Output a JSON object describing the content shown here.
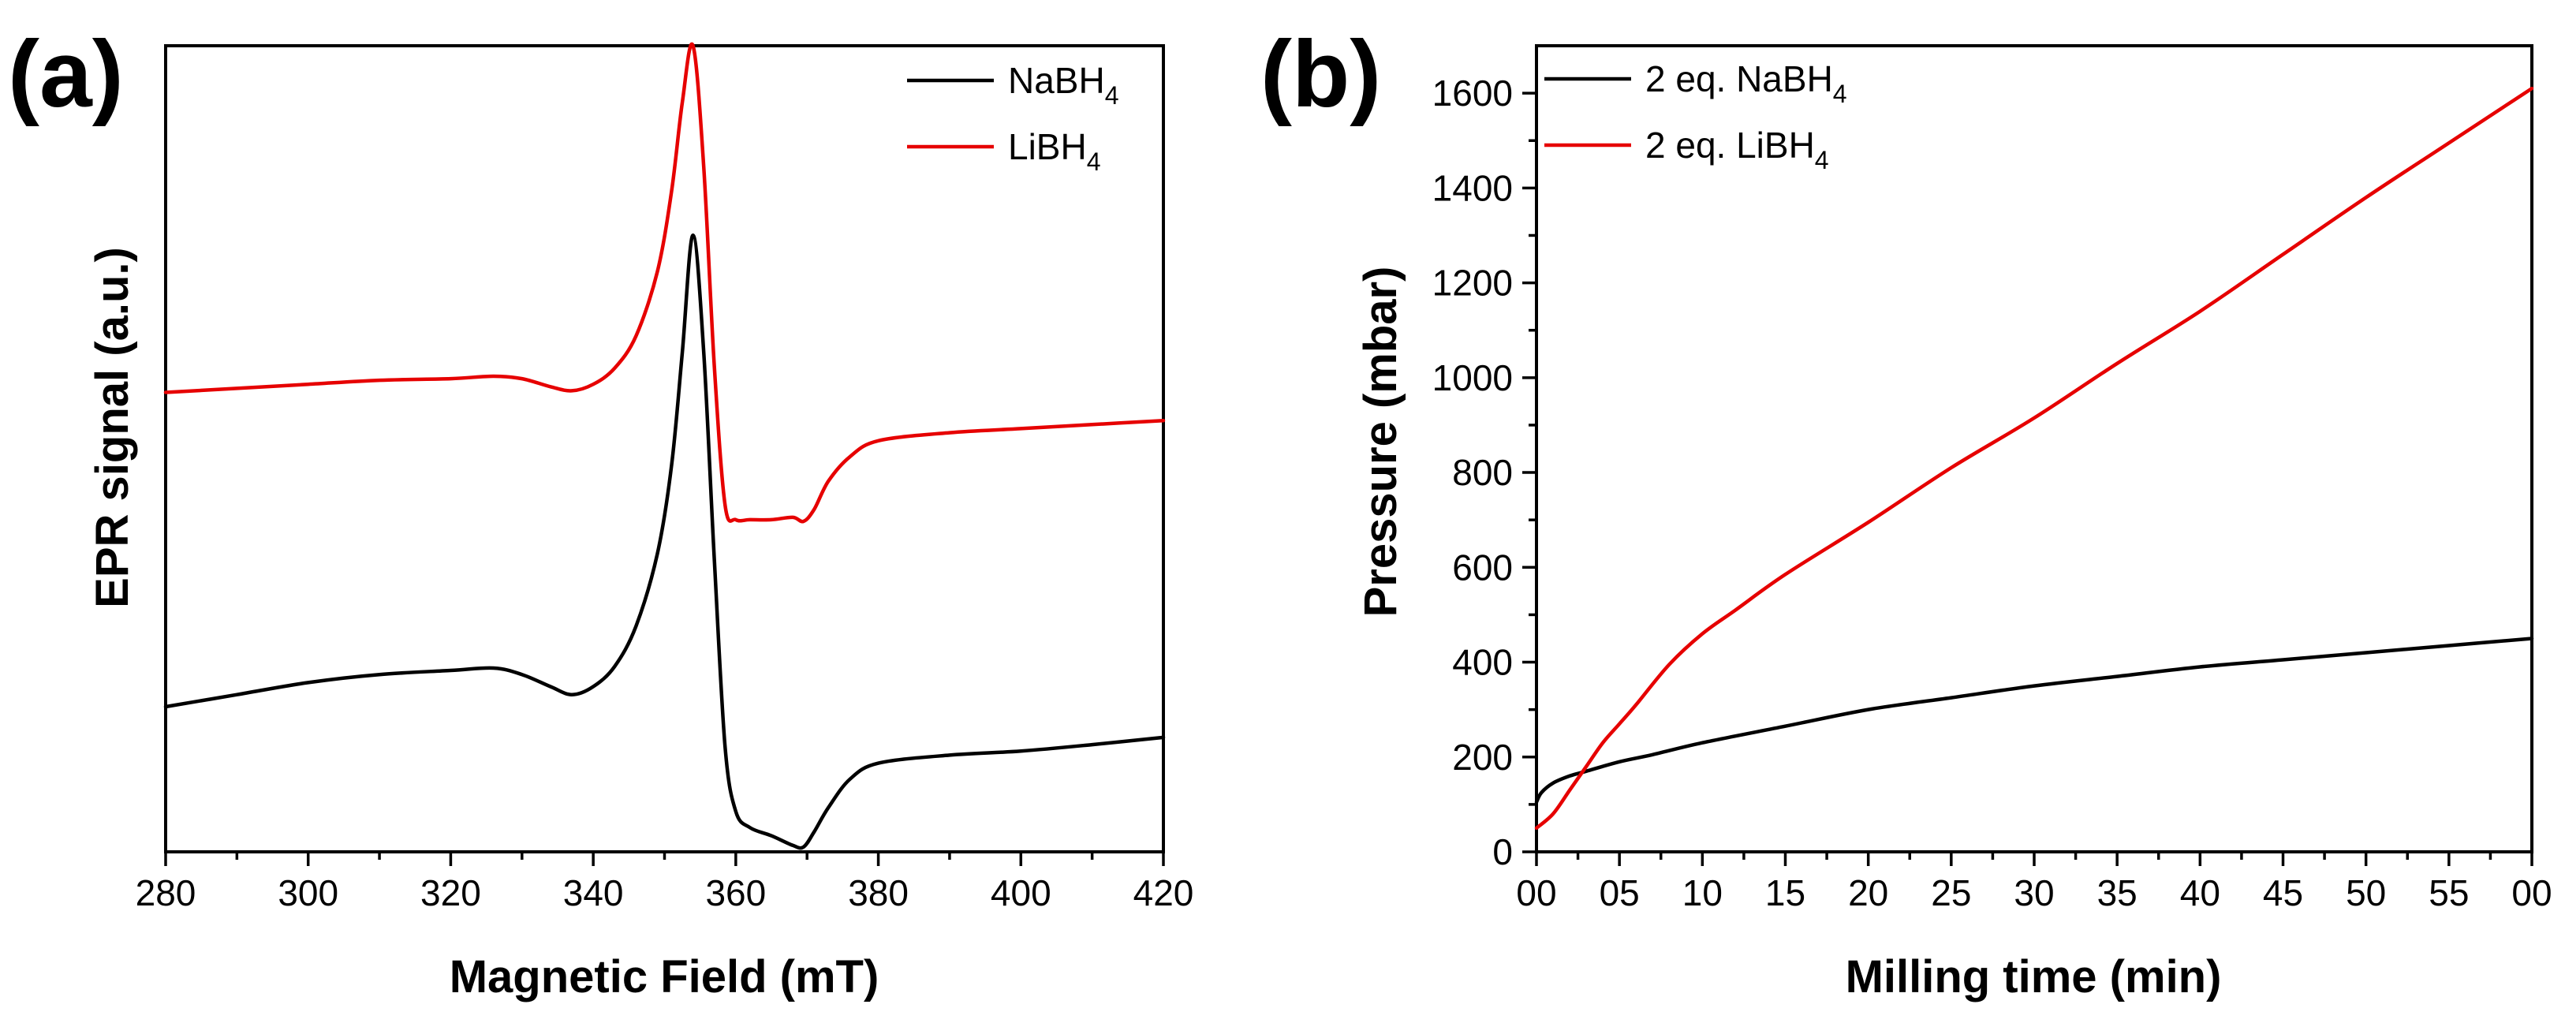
{
  "panels": [
    {
      "label": "(a)"
    },
    {
      "label": "(b)"
    }
  ],
  "chart_data": [
    {
      "type": "line",
      "xlabel": "Magnetic Field (mT)",
      "ylabel": "EPR signal (a.u.)",
      "xlim": [
        280,
        420
      ],
      "ylim": [
        0,
        1
      ],
      "x_ticks": [
        "280",
        "300",
        "320",
        "340",
        "360",
        "380",
        "400",
        "420"
      ],
      "y_ticks": [],
      "legend": "top-right",
      "series": [
        {
          "name": "NaBH",
          "name_subscript": "4",
          "color": "#000000",
          "x": [
            280,
            290,
            300,
            310,
            320,
            326,
            330,
            334,
            337,
            340,
            343,
            346,
            349,
            351,
            352.5,
            354,
            355.5,
            357,
            358.5,
            360,
            362,
            365,
            368,
            369.5,
            371,
            373,
            376,
            380,
            390,
            400,
            410,
            420
          ],
          "y": [
            0.18,
            0.195,
            0.21,
            0.22,
            0.225,
            0.228,
            0.22,
            0.205,
            0.195,
            0.205,
            0.23,
            0.28,
            0.37,
            0.48,
            0.62,
            0.765,
            0.62,
            0.36,
            0.13,
            0.05,
            0.03,
            0.02,
            0.008,
            0.006,
            0.025,
            0.055,
            0.09,
            0.11,
            0.12,
            0.125,
            0.133,
            0.142
          ]
        },
        {
          "name": "LiBH",
          "name_subscript": "4",
          "color": "#e60000",
          "x": [
            280,
            290,
            300,
            310,
            320,
            326,
            330,
            334,
            337,
            340,
            343,
            346,
            349,
            351,
            352.5,
            354,
            355.5,
            357,
            358.5,
            360,
            362,
            365,
            368,
            369.5,
            371,
            373,
            376,
            380,
            390,
            400,
            410,
            420
          ],
          "y": [
            0.57,
            0.575,
            0.58,
            0.585,
            0.587,
            0.59,
            0.587,
            0.577,
            0.572,
            0.58,
            0.6,
            0.64,
            0.72,
            0.82,
            0.93,
            1.0,
            0.85,
            0.6,
            0.43,
            0.412,
            0.412,
            0.412,
            0.415,
            0.41,
            0.425,
            0.46,
            0.49,
            0.51,
            0.52,
            0.525,
            0.53,
            0.535
          ]
        }
      ]
    },
    {
      "type": "line",
      "xlabel": "Milling time (min)",
      "ylabel": "Pressure (mbar)",
      "xlim": [
        0,
        60
      ],
      "ylim": [
        0,
        1700
      ],
      "x_ticks": [
        "00",
        "05",
        "10",
        "15",
        "20",
        "25",
        "30",
        "35",
        "40",
        "45",
        "50",
        "55",
        "00"
      ],
      "y_ticks": [
        "0",
        "200",
        "400",
        "600",
        "800",
        "1000",
        "1200",
        "1400",
        "1600"
      ],
      "legend": "top-left",
      "series": [
        {
          "name": "2 eq. NaBH",
          "name_subscript": "4",
          "color": "#000000",
          "x": [
            0,
            0.3,
            1,
            2,
            3,
            5,
            7,
            10,
            15,
            20,
            25,
            30,
            35,
            40,
            45,
            50,
            55,
            60
          ],
          "y": [
            105,
            125,
            145,
            160,
            170,
            190,
            205,
            230,
            265,
            300,
            325,
            350,
            370,
            390,
            405,
            420,
            435,
            450
          ]
        },
        {
          "name": "2 eq. LiBH",
          "name_subscript": "4",
          "color": "#e60000",
          "x": [
            0,
            1,
            2,
            3,
            4,
            5,
            6,
            8,
            10,
            12,
            15,
            20,
            25,
            30,
            35,
            40,
            45,
            50,
            55,
            60
          ],
          "y": [
            50,
            80,
            130,
            180,
            230,
            270,
            310,
            395,
            460,
            510,
            585,
            695,
            810,
            915,
            1030,
            1140,
            1260,
            1380,
            1495,
            1610
          ]
        }
      ]
    }
  ]
}
